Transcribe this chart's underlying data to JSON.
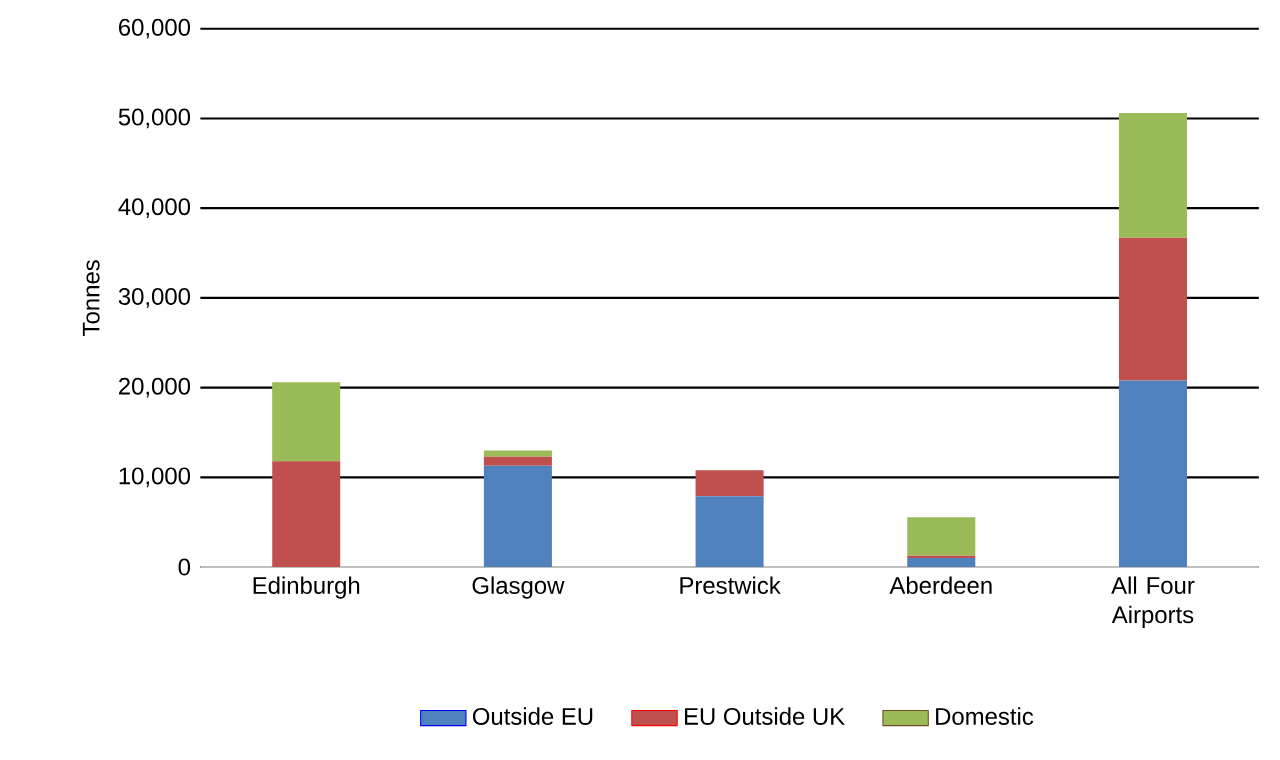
{
  "chart_data": {
    "type": "bar",
    "stacked": true,
    "ylabel": "Tonnes",
    "categories": [
      "Edinburgh",
      "Glasgow",
      "Prestwick",
      "Aberdeen",
      "All Four Airports"
    ],
    "series": [
      {
        "name": "Outside EU",
        "color": "#4f81bd",
        "values": [
          0,
          11300,
          7900,
          1000,
          20800
        ]
      },
      {
        "name": "EU Outside UK",
        "color": "#c0504d",
        "values": [
          11800,
          1000,
          2900,
          250,
          15900
        ]
      },
      {
        "name": "Domestic",
        "color": "#9bbb59",
        "values": [
          8800,
          700,
          0,
          4300,
          13900
        ]
      }
    ],
    "ylim": [
      0,
      60000
    ],
    "yticks": [
      {
        "value": 0,
        "label": "0"
      },
      {
        "value": 10000,
        "label": "10,000"
      },
      {
        "value": 20000,
        "label": "20,000"
      },
      {
        "value": 30000,
        "label": "30,000"
      },
      {
        "value": 40000,
        "label": "40,000"
      },
      {
        "value": 50000,
        "label": "50,000"
      },
      {
        "value": 60000,
        "label": "60,000"
      }
    ],
    "grid": "y",
    "legend": "bottom"
  }
}
